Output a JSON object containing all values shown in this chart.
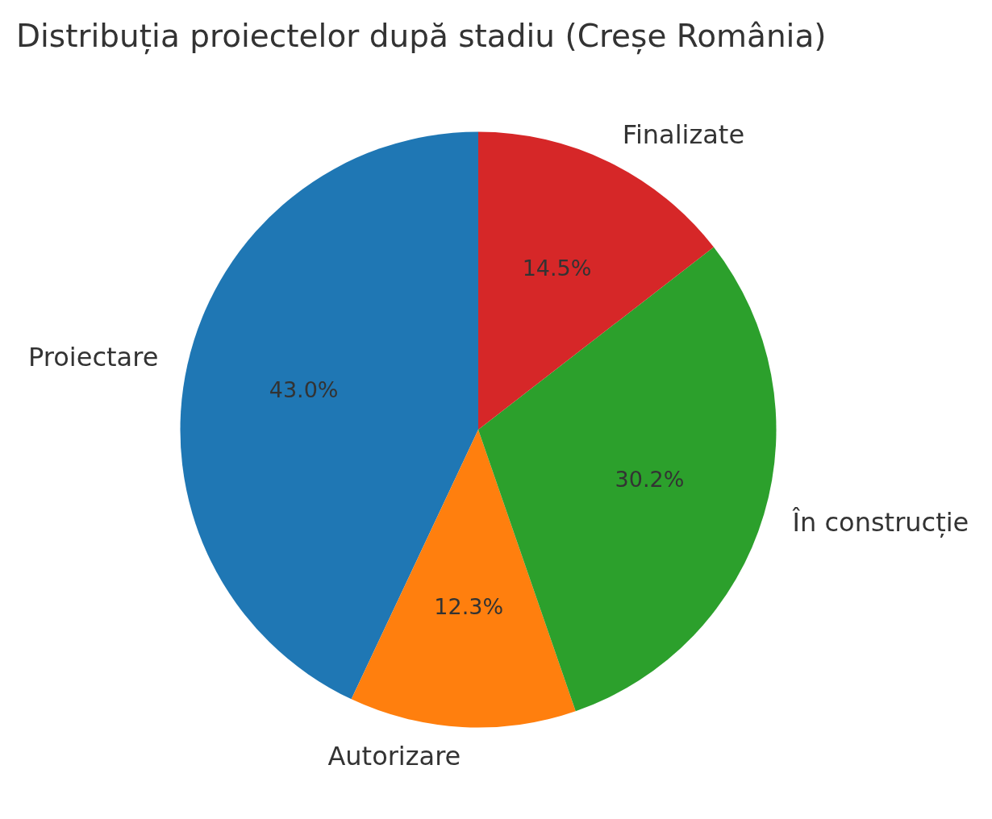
{
  "chart_data": {
    "type": "pie",
    "title": "Distribuția proiectelor după stadiu (Creșe România)",
    "categories": [
      "Proiectare",
      "Autorizare",
      "În construcție",
      "Finalizate"
    ],
    "values": [
      43.0,
      12.3,
      30.2,
      14.5
    ],
    "colors": [
      "#1f77b4",
      "#ff7f0e",
      "#2ca02c",
      "#d62728"
    ],
    "value_labels": [
      "43.0%",
      "12.3%",
      "30.2%",
      "14.5%"
    ]
  }
}
